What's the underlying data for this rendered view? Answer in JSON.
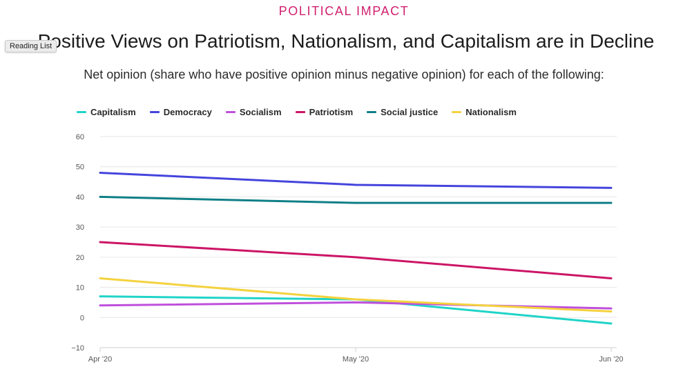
{
  "header": {
    "kicker": "POLITICAL IMPACT",
    "title": "Positive Views on Patriotism, Nationalism, and Capitalism are in Decline",
    "subtitle": "Net opinion (share who have positive opinion minus negative opinion) for each of the following:"
  },
  "tooltip": {
    "label": "Reading List"
  },
  "chart_data": {
    "type": "line",
    "title": "Positive Views on Patriotism, Nationalism, and Capitalism are in Decline",
    "subtitle": "Net opinion (share who have positive opinion minus negative opinion) for each of the following:",
    "categories": [
      "Apr '20",
      "May '20",
      "Jun '20"
    ],
    "ylim": [
      -10,
      60
    ],
    "yticks": [
      -10,
      0,
      10,
      20,
      30,
      40,
      50,
      60
    ],
    "grid": true,
    "legend_position": "top-left",
    "series": [
      {
        "name": "Capitalism",
        "color": "#1fd4c8",
        "values": [
          7,
          6,
          -2
        ]
      },
      {
        "name": "Democracy",
        "color": "#4444dd",
        "values": [
          48,
          44,
          43
        ]
      },
      {
        "name": "Socialism",
        "color": "#bf4fdc",
        "values": [
          4,
          5,
          3
        ]
      },
      {
        "name": "Patriotism",
        "color": "#cc1466",
        "values": [
          25,
          20,
          13
        ]
      },
      {
        "name": "Social justice",
        "color": "#0e7f86",
        "values": [
          40,
          38,
          38
        ]
      },
      {
        "name": "Nationalism",
        "color": "#f4d23e",
        "values": [
          13,
          6,
          2
        ]
      }
    ]
  }
}
